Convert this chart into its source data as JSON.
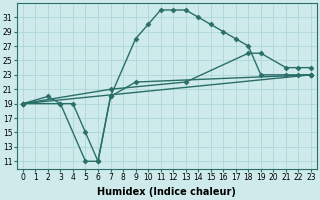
{
  "background_color": "#ceeaea",
  "grid_color": "#a8d4d4",
  "line_color": "#2a6e68",
  "marker": "D",
  "markersize": 2.5,
  "linewidth": 1.0,
  "xlabel": "Humidex (Indice chaleur)",
  "xlabel_fontsize": 7,
  "tick_fontsize": 5.5,
  "xlim": [
    -0.5,
    23.5
  ],
  "ylim": [
    10.0,
    33.0
  ],
  "yticks": [
    11,
    13,
    15,
    17,
    19,
    21,
    23,
    25,
    27,
    29,
    31
  ],
  "xticks": [
    0,
    1,
    2,
    3,
    4,
    5,
    6,
    7,
    8,
    9,
    10,
    11,
    12,
    13,
    14,
    15,
    16,
    17,
    18,
    19,
    20,
    21,
    22,
    23
  ],
  "series": [
    {
      "x": [
        0,
        2,
        3,
        5,
        6,
        7,
        9,
        10,
        11,
        12,
        13,
        14,
        15,
        16,
        17,
        18,
        19,
        21,
        22,
        23
      ],
      "y": [
        19,
        20,
        19,
        11,
        11,
        20,
        28,
        30,
        32,
        32,
        32,
        31,
        30,
        29,
        28,
        27,
        23,
        23,
        23,
        23
      ]
    },
    {
      "x": [
        0,
        3,
        4,
        5,
        6,
        7,
        9,
        23
      ],
      "y": [
        19,
        19,
        19,
        15,
        11,
        20,
        22,
        23
      ]
    },
    {
      "x": [
        0,
        7,
        13,
        18,
        19,
        21,
        22,
        23
      ],
      "y": [
        19,
        21,
        22,
        26,
        26,
        24,
        24,
        24
      ]
    },
    {
      "x": [
        0,
        23
      ],
      "y": [
        19,
        23
      ]
    }
  ]
}
